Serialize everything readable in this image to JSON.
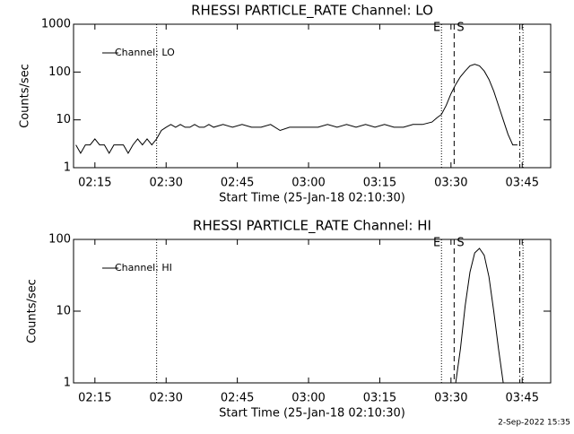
{
  "chart_data": [
    {
      "type": "line",
      "title": "RHESSI PARTICLE_RATE Channel: LO",
      "xlabel": "Start Time (25-Jan-18 02:10:30)",
      "ylabel": "Counts/sec",
      "log_y": true,
      "legend": "upper left",
      "xlim": [
        "02:10:30",
        "03:51:00"
      ],
      "xticks": [
        "02:15",
        "02:30",
        "02:45",
        "03:00",
        "03:15",
        "03:30",
        "03:45"
      ],
      "ylim": [
        1,
        1000
      ],
      "yticks": [
        1,
        10,
        100,
        1000
      ],
      "x": [
        "02:11",
        "02:12",
        "02:13",
        "02:14",
        "02:15",
        "02:16",
        "02:17",
        "02:18",
        "02:19",
        "02:20",
        "02:21",
        "02:22",
        "02:23",
        "02:24",
        "02:25",
        "02:26",
        "02:27",
        "02:28",
        "02:29",
        "02:30",
        "02:31",
        "02:32",
        "02:33",
        "02:34",
        "02:35",
        "02:36",
        "02:37",
        "02:38",
        "02:39",
        "02:40",
        "02:42",
        "02:44",
        "02:46",
        "02:48",
        "02:50",
        "02:52",
        "02:54",
        "02:56",
        "02:58",
        "03:00",
        "03:02",
        "03:04",
        "03:06",
        "03:08",
        "03:10",
        "03:12",
        "03:14",
        "03:16",
        "03:18",
        "03:20",
        "03:22",
        "03:24",
        "03:26",
        "03:27",
        "03:28",
        "03:29",
        "03:30",
        "03:31",
        "03:32",
        "03:33",
        "03:34",
        "03:35",
        "03:36",
        "03:37",
        "03:38",
        "03:39",
        "03:40",
        "03:41",
        "03:42",
        "03:43",
        "03:44"
      ],
      "series": [
        {
          "name": "Channel: LO",
          "color": "#000000",
          "values": [
            3,
            2,
            3,
            3,
            4,
            3,
            3,
            2,
            3,
            3,
            3,
            2,
            3,
            4,
            3,
            4,
            3,
            4,
            6,
            7,
            8,
            7,
            8,
            7,
            7,
            8,
            7,
            7,
            8,
            7,
            8,
            7,
            8,
            7,
            7,
            8,
            6,
            7,
            7,
            7,
            7,
            8,
            7,
            8,
            7,
            8,
            7,
            8,
            7,
            7,
            8,
            8,
            9,
            11,
            13,
            20,
            35,
            55,
            80,
            105,
            135,
            145,
            135,
            105,
            70,
            40,
            20,
            10,
            5,
            3,
            3
          ]
        }
      ],
      "vlines": [
        {
          "x": "02:28",
          "style": "dotted"
        },
        {
          "x": "03:28",
          "style": "dotted",
          "label": "E"
        },
        {
          "x": "03:30:40",
          "style": "dashed",
          "label": "S"
        },
        {
          "x": "03:44:30",
          "style": "dashdot"
        },
        {
          "x": "03:45:10",
          "style": "dotted"
        }
      ]
    },
    {
      "type": "line",
      "title": "RHESSI PARTICLE_RATE Channel: HI",
      "xlabel": "Start Time (25-Jan-18 02:10:30)",
      "ylabel": "Counts/sec",
      "log_y": true,
      "legend": "upper left",
      "xlim": [
        "02:10:30",
        "03:51:00"
      ],
      "xticks": [
        "02:15",
        "02:30",
        "02:45",
        "03:00",
        "03:15",
        "03:30",
        "03:45"
      ],
      "ylim": [
        1,
        100
      ],
      "yticks": [
        1,
        10,
        100
      ],
      "x": [
        "03:31",
        "03:32",
        "03:33",
        "03:34",
        "03:35",
        "03:36",
        "03:37",
        "03:38",
        "03:39",
        "03:40",
        "03:41"
      ],
      "series": [
        {
          "name": "Channel: HI",
          "color": "#000000",
          "values": [
            1,
            3,
            12,
            35,
            65,
            75,
            60,
            30,
            10,
            3,
            1
          ]
        }
      ],
      "vlines": [
        {
          "x": "02:28",
          "style": "dotted"
        },
        {
          "x": "03:28",
          "style": "dotted",
          "label": "E"
        },
        {
          "x": "03:30:40",
          "style": "dashed",
          "label": "S"
        },
        {
          "x": "03:44:30",
          "style": "dashdot"
        },
        {
          "x": "03:45:10",
          "style": "dotted"
        }
      ]
    }
  ],
  "footer": "2-Sep-2022 15:35"
}
